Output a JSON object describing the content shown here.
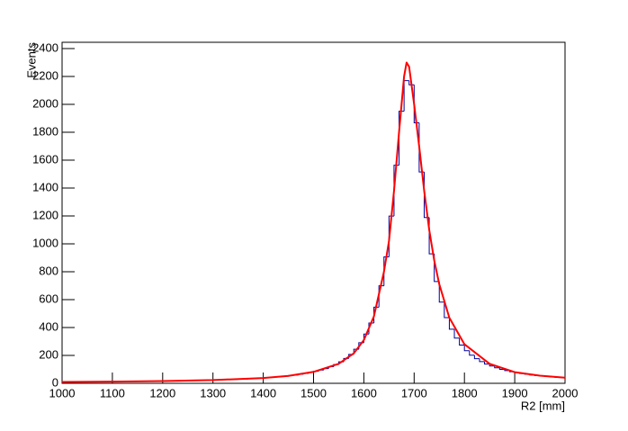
{
  "chart_data": {
    "type": "histogram",
    "x_label": "R2 [mm]",
    "y_label": "Events",
    "bins": [
      1000,
      1010,
      1020,
      1030,
      1040,
      1050,
      1060,
      1070,
      1080,
      1090,
      1100,
      1110,
      1120,
      1130,
      1140,
      1150,
      1160,
      1170,
      1180,
      1190,
      1200,
      1210,
      1220,
      1230,
      1240,
      1250,
      1260,
      1270,
      1280,
      1290,
      1300,
      1310,
      1320,
      1330,
      1340,
      1350,
      1360,
      1370,
      1380,
      1390,
      1400,
      1410,
      1420,
      1430,
      1440,
      1450,
      1460,
      1470,
      1480,
      1490,
      1500,
      1510,
      1520,
      1530,
      1540,
      1550,
      1560,
      1570,
      1580,
      1590,
      1600,
      1610,
      1620,
      1630,
      1640,
      1650,
      1660,
      1670,
      1680,
      1690,
      1700,
      1710,
      1720,
      1730,
      1740,
      1750,
      1760,
      1770,
      1780,
      1790,
      1800,
      1810,
      1820,
      1830,
      1840,
      1850,
      1860,
      1870,
      1880,
      1890,
      1900,
      1910,
      1920,
      1930,
      1940,
      1950,
      1960,
      1970,
      1980,
      1990,
      2000
    ],
    "values": [
      10,
      10,
      11,
      11,
      11,
      11,
      11,
      12,
      12,
      12,
      12,
      13,
      13,
      13,
      14,
      14,
      14,
      15,
      15,
      16,
      16,
      17,
      17,
      18,
      19,
      19,
      20,
      21,
      22,
      22,
      23,
      24,
      26,
      27,
      28,
      29,
      31,
      33,
      35,
      37,
      39,
      42,
      45,
      48,
      51,
      56,
      60,
      65,
      71,
      78,
      86,
      95,
      106,
      119,
      135,
      154,
      178,
      207,
      244,
      291,
      353,
      432,
      546,
      699,
      906,
      1199,
      1564,
      1951,
      2170,
      2140,
      1868,
      1515,
      1189,
      928,
      730,
      582,
      471,
      388,
      324,
      274,
      234,
      202,
      177,
      156,
      138,
      124,
      111,
      100,
      91,
      83,
      76,
      70,
      65,
      60,
      56,
      52,
      49,
      46,
      43,
      41
    ],
    "color": "#000099",
    "fit": {
      "x": [
        1000,
        1100,
        1200,
        1300,
        1400,
        1450,
        1500,
        1550,
        1580,
        1600,
        1620,
        1640,
        1650,
        1660,
        1670,
        1680,
        1685,
        1690,
        1700,
        1710,
        1720,
        1730,
        1740,
        1750,
        1770,
        1800,
        1850,
        1900,
        1950,
        2000
      ],
      "values": [
        10,
        12,
        16,
        23,
        38,
        53,
        82,
        140,
        215,
        310,
        480,
        800,
        1020,
        1380,
        1800,
        2200,
        2300,
        2270,
        2000,
        1700,
        1380,
        1100,
        880,
        710,
        470,
        280,
        140,
        80,
        55,
        40
      ],
      "color": "#ff0000"
    },
    "xlim": [
      1000,
      2000
    ],
    "xticks": [
      1000,
      1100,
      1200,
      1300,
      1400,
      1500,
      1600,
      1700,
      1800,
      1900,
      2000
    ],
    "ylim": [
      0,
      2445
    ],
    "yticks": [
      0,
      200,
      400,
      600,
      800,
      1000,
      1200,
      1400,
      1600,
      1800,
      2000,
      2200,
      2400
    ]
  }
}
